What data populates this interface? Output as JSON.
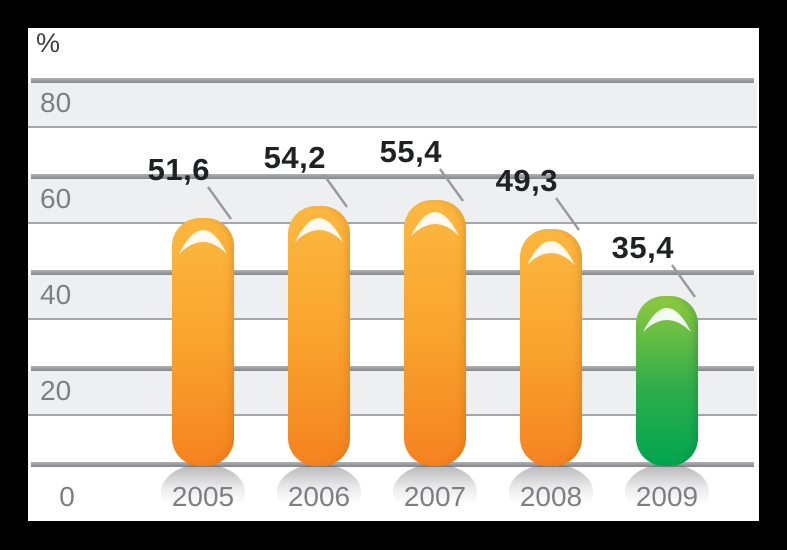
{
  "y_axis": {
    "unit": "%",
    "tick_labels": [
      "80",
      "60",
      "40",
      "20"
    ],
    "zero_label": "0"
  },
  "chart_data": {
    "type": "bar",
    "title": "",
    "ylabel": "%",
    "xlabel": "",
    "categories": [
      "2005",
      "2006",
      "2007",
      "2008",
      "2009"
    ],
    "values": [
      51.6,
      54.2,
      55.4,
      49.3,
      35.4
    ],
    "value_labels": [
      "51,6",
      "54,2",
      "55,4",
      "49,3",
      "35,4"
    ],
    "bar_color_keys": [
      "orange",
      "orange",
      "orange",
      "orange",
      "green"
    ],
    "ylim": [
      0,
      90
    ],
    "yticks": [
      0,
      20,
      40,
      60,
      80
    ],
    "grid": "horizontal thick line every 20 units with shaded 10-unit band below it",
    "legend": "none"
  },
  "colors": {
    "frame": "#000000",
    "panel": "#FFFFFF",
    "band_fill": "#EEEFF1",
    "gridline_thick": "#8F9194",
    "gridline_thin": "#A5A7AA",
    "axis_text": "#7D7F82",
    "unit_text": "#3E3F41",
    "value_label_text": "#202124",
    "leader_line": "#97999C",
    "orange_bar_top": "#FCB840",
    "orange_bar_bottom": "#F58220",
    "green_bar_top": "#8FC93F",
    "green_bar_bottom": "#00A651",
    "gloss_highlight": "#FFFFFF"
  }
}
